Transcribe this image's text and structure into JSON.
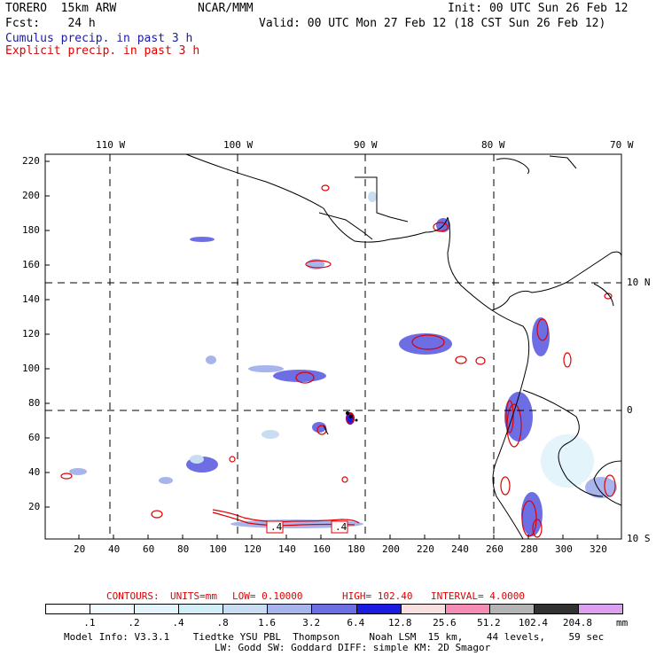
{
  "header": {
    "model": "TORERO  15km ARW",
    "center": "NCAR/MMM",
    "init": "Init: 00 UTC Sun 26 Feb 12",
    "fcst": "Fcst:    24 h",
    "valid": "Valid: 00 UTC Mon 27 Feb 12 (18 CST Sun 26 Feb 12)",
    "field1": "Cumulus precip. in past 3 h",
    "field2": "Explicit precip. in past 3 h"
  },
  "axes": {
    "lon_labels": [
      "110 W",
      "100 W",
      "90 W",
      "80 W",
      "70 W"
    ],
    "lat_labels": [
      "10 N",
      "0",
      "10 S"
    ],
    "y_ticks": [
      "220",
      "200",
      "180",
      "160",
      "140",
      "120",
      "100",
      "80",
      "60",
      "40",
      "20"
    ],
    "x_ticks": [
      "20",
      "40",
      "60",
      "80",
      "100",
      "120",
      "140",
      "160",
      "180",
      "200",
      "220",
      "240",
      "260",
      "280",
      "300",
      "320"
    ],
    "box_labels": [
      ".4",
      ".4"
    ]
  },
  "contours": {
    "label": "CONTOURS:",
    "units": "UNITS=mm",
    "low": "LOW= 0.10000",
    "high": "HIGH= 102.40",
    "interval": "INTERVAL= 4.0000"
  },
  "legend": {
    "values": [
      ".1",
      ".2",
      ".4",
      ".8",
      "1.6",
      "3.2",
      "6.4",
      "12.8",
      "25.6",
      "51.2",
      "102.4",
      "204.8"
    ],
    "unit": "mm",
    "colors": [
      "#ffffff",
      "#f4fbff",
      "#e4f4fb",
      "#d2eef6",
      "#c8dcf2",
      "#a8b4ec",
      "#6e6ee4",
      "#1c1ce0",
      "#f8e0e0",
      "#f48cb4",
      "#b4b4b4",
      "#323232",
      "#dca0f0"
    ]
  },
  "footer": {
    "line1": "Model Info: V3.3.1    Tiedtke YSU PBL  Thompson     Noah LSM  15 km,    44 levels,    59 sec",
    "line2": "LW: Godd SW: Goddard DIFF: simple KM: 2D Smagor"
  }
}
